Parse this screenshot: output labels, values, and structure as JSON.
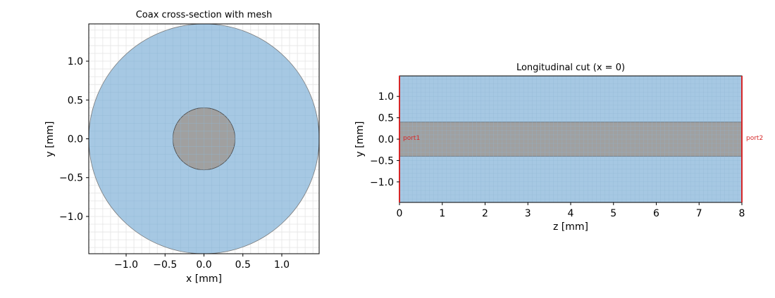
{
  "chart_data": [
    {
      "type": "scatter",
      "title": "Coax cross-section with mesh",
      "xlabel": "x [mm]",
      "ylabel": "y [mm]",
      "xlim": [
        -1.48,
        1.48
      ],
      "ylim": [
        -1.48,
        1.48
      ],
      "xticks": [
        -1.0,
        -0.5,
        0.0,
        0.5,
        1.0
      ],
      "xtick_labels": [
        "−1.0",
        "−0.5",
        "0.0",
        "0.5",
        "1.0"
      ],
      "yticks": [
        1.0,
        0.5,
        0.0,
        -0.5,
        -1.0
      ],
      "ytick_labels": [
        "1.0",
        "0.5",
        "0.0",
        "−0.5",
        "−1.0"
      ],
      "grid": true,
      "mesh_step": 0.1,
      "outer_radius": 1.48,
      "inner_radius": 0.4,
      "dielectric_color": "#a6c8e3",
      "conductor_color": "#a0a0a0"
    },
    {
      "type": "area",
      "title": "Longitudinal cut (x = 0)",
      "xlabel": "z [mm]",
      "ylabel": "y [mm]",
      "xlim": [
        0,
        8
      ],
      "ylim": [
        -1.48,
        1.48
      ],
      "xticks": [
        0,
        1,
        2,
        3,
        4,
        5,
        6,
        7,
        8
      ],
      "xtick_labels": [
        "0",
        "1",
        "2",
        "3",
        "4",
        "5",
        "6",
        "7",
        "8"
      ],
      "yticks": [
        1.0,
        0.5,
        0.0,
        -0.5,
        -1.0
      ],
      "ytick_labels": [
        "1.0",
        "0.5",
        "0.0",
        "−0.5",
        "−1.0"
      ],
      "grid": true,
      "mesh_step_x": 0.1,
      "mesh_step_y": 0.1,
      "inner_band": [
        -0.4,
        0.4
      ],
      "dielectric_color": "#a6c8e3",
      "conductor_color": "#a0a0a0",
      "ports": [
        {
          "label": "port1",
          "z": 0.0,
          "y": 0.15
        },
        {
          "label": "port2",
          "z": 8.0,
          "y": 0.15
        }
      ],
      "port_color": "#d62728"
    }
  ]
}
